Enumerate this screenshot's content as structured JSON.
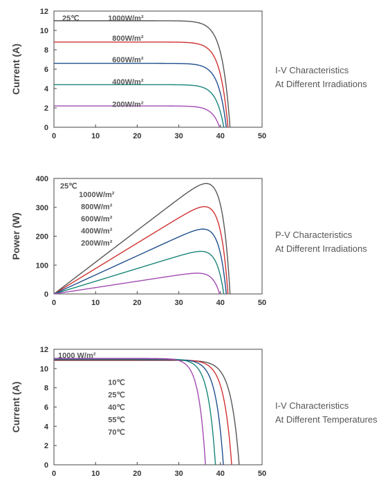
{
  "chart_data": [
    {
      "type": "line",
      "caption": [
        "I-V Characteristics",
        "At Different Irradiations"
      ],
      "ylabel": "Current (A)",
      "xlim": [
        0,
        50
      ],
      "ylim": [
        0,
        12
      ],
      "xticks": [
        0,
        10,
        20,
        30,
        40,
        50
      ],
      "yticks": [
        0,
        2,
        4,
        6,
        8,
        10,
        12
      ],
      "grid": false,
      "annotations": [
        {
          "text": "25℃",
          "x": 2,
          "y": 11.3
        },
        {
          "text": "1000W/m²",
          "x": 13,
          "y": 11.3
        },
        {
          "text": "800W/m²",
          "x": 14,
          "y": 9.2
        },
        {
          "text": "600W/m²",
          "x": 14,
          "y": 7.0
        },
        {
          "text": "400W/m²",
          "x": 14,
          "y": 4.7
        },
        {
          "text": "200W/m²",
          "x": 14,
          "y": 2.4
        }
      ],
      "series": [
        {
          "color": "#555555",
          "isc": 11.0,
          "voc": 42.3
        },
        {
          "color": "#d03030",
          "isc": 8.8,
          "voc": 41.8
        },
        {
          "color": "#1f4e8c",
          "isc": 6.6,
          "voc": 41.4
        },
        {
          "color": "#178577",
          "isc": 4.4,
          "voc": 40.8
        },
        {
          "color": "#a24ab2",
          "isc": 2.2,
          "voc": 39.8
        }
      ]
    },
    {
      "type": "line",
      "caption": [
        "P-V Characteristics",
        "At Different Irradiations"
      ],
      "ylabel": "Power (W)",
      "xlim": [
        0,
        50
      ],
      "ylim": [
        0,
        400
      ],
      "xticks": [
        0,
        10,
        20,
        30,
        40,
        50
      ],
      "yticks": [
        0,
        100,
        200,
        300,
        400
      ],
      "grid": false,
      "annotations": [
        {
          "text": "25℃",
          "x": 1.5,
          "y": 375
        },
        {
          "text": "1000W/m²",
          "x": 6,
          "y": 345
        },
        {
          "text": "800W/m²",
          "x": 6.5,
          "y": 303
        },
        {
          "text": "600W/m²",
          "x": 6.5,
          "y": 261
        },
        {
          "text": "400W/m²",
          "x": 6.5,
          "y": 219
        },
        {
          "text": "200W/m²",
          "x": 6.5,
          "y": 177
        }
      ],
      "series": [
        {
          "color": "#555555",
          "isc": 11.0,
          "voc": 42.3
        },
        {
          "color": "#d03030",
          "isc": 8.8,
          "voc": 41.8
        },
        {
          "color": "#1f4e8c",
          "isc": 6.6,
          "voc": 41.4
        },
        {
          "color": "#178577",
          "isc": 4.4,
          "voc": 40.8
        },
        {
          "color": "#a24ab2",
          "isc": 2.2,
          "voc": 39.8
        }
      ]
    },
    {
      "type": "line",
      "caption": [
        "I-V Characteristics",
        "At Different Temperatures"
      ],
      "ylabel": "Current (A)",
      "xlim": [
        0,
        50
      ],
      "ylim": [
        0,
        12
      ],
      "xticks": [
        0,
        10,
        20,
        30,
        40,
        50
      ],
      "yticks": [
        0,
        2,
        4,
        6,
        8,
        10,
        12
      ],
      "grid": false,
      "annotations": [
        {
          "text": "1000 W/m²",
          "x": 1,
          "y": 11.4
        },
        {
          "text": "10℃",
          "x": 13,
          "y": 8.6
        },
        {
          "text": "25℃",
          "x": 13,
          "y": 7.3
        },
        {
          "text": "40℃",
          "x": 13,
          "y": 6.0
        },
        {
          "text": "55℃",
          "x": 13,
          "y": 4.7
        },
        {
          "text": "70℃",
          "x": 13,
          "y": 3.4
        }
      ],
      "series": [
        {
          "color": "#555555",
          "isc": 10.85,
          "voc": 44.5
        },
        {
          "color": "#d03030",
          "isc": 10.9,
          "voc": 42.7
        },
        {
          "color": "#1f4e8c",
          "isc": 10.95,
          "voc": 40.7
        },
        {
          "color": "#178577",
          "isc": 11.0,
          "voc": 38.8
        },
        {
          "color": "#a24ab2",
          "isc": 11.05,
          "voc": 36.4
        }
      ]
    }
  ]
}
